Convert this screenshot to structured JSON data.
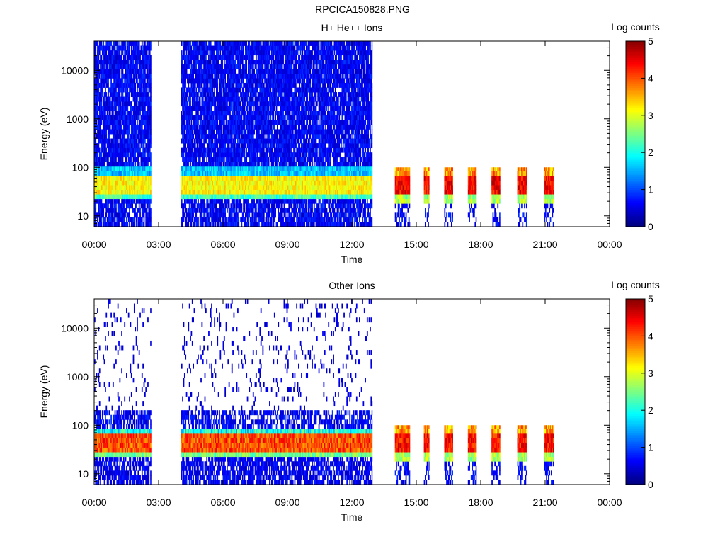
{
  "figure": {
    "filename": "RPCICA150828.PNG"
  },
  "chart_data": [
    {
      "type": "heatmap",
      "title": "H+ He++ Ions",
      "xlabel": "Time",
      "ylabel": "Energy (eV)",
      "colorbar_label": "Log counts",
      "colorbar_ticks": [
        "0",
        "1",
        "2",
        "3",
        "4",
        "5"
      ],
      "colorbar_range": [
        0,
        5
      ],
      "colormap": [
        "#00007f",
        "#0000ff",
        "#007fff",
        "#00ffff",
        "#7fff7f",
        "#ffff00",
        "#ff7f00",
        "#ff0000",
        "#7f0000"
      ],
      "x_ticks": [
        "00:00",
        "03:00",
        "06:00",
        "09:00",
        "12:00",
        "15:00",
        "18:00",
        "21:00",
        "00:00"
      ],
      "x_range_hours": [
        0,
        24
      ],
      "y_scale": "log",
      "y_range_ev": [
        6,
        40000
      ],
      "y_ticks": [
        "10",
        "100",
        "1000",
        "10000"
      ],
      "coverage_hours": [
        [
          0,
          2.65
        ],
        [
          4.05,
          12.95
        ],
        [
          14.0,
          14.7
        ],
        [
          15.35,
          15.6
        ],
        [
          16.3,
          16.7
        ],
        [
          17.4,
          17.8
        ],
        [
          18.5,
          18.9
        ],
        [
          19.7,
          20.15
        ],
        [
          20.95,
          21.4
        ]
      ],
      "band_peak_ev": [
        30,
        65
      ],
      "band_peak_log_counts": 3.5,
      "burst_peak_log_counts": 4.8
    },
    {
      "type": "heatmap",
      "title": "Other Ions",
      "xlabel": "Time",
      "ylabel": "Energy (eV)",
      "colorbar_label": "Log counts",
      "colorbar_ticks": [
        "0",
        "1",
        "2",
        "3",
        "4",
        "5"
      ],
      "colorbar_range": [
        0,
        5
      ],
      "colormap": [
        "#00007f",
        "#0000ff",
        "#007fff",
        "#00ffff",
        "#7fff7f",
        "#ffff00",
        "#ff7f00",
        "#ff0000",
        "#7f0000"
      ],
      "x_ticks": [
        "00:00",
        "03:00",
        "06:00",
        "09:00",
        "12:00",
        "15:00",
        "18:00",
        "21:00",
        "00:00"
      ],
      "x_range_hours": [
        0,
        24
      ],
      "y_scale": "log",
      "y_range_ev": [
        6,
        40000
      ],
      "y_ticks": [
        "10",
        "100",
        "1000",
        "10000"
      ],
      "coverage_hours": [
        [
          0,
          2.65
        ],
        [
          4.05,
          12.95
        ],
        [
          14.0,
          14.7
        ],
        [
          15.35,
          15.6
        ],
        [
          16.3,
          16.7
        ],
        [
          17.4,
          17.8
        ],
        [
          18.5,
          18.9
        ],
        [
          19.7,
          20.15
        ],
        [
          20.95,
          21.4
        ]
      ],
      "band_peak_ev": [
        30,
        65
      ],
      "band_peak_log_counts": 4.5,
      "burst_peak_log_counts": 4.7
    }
  ]
}
